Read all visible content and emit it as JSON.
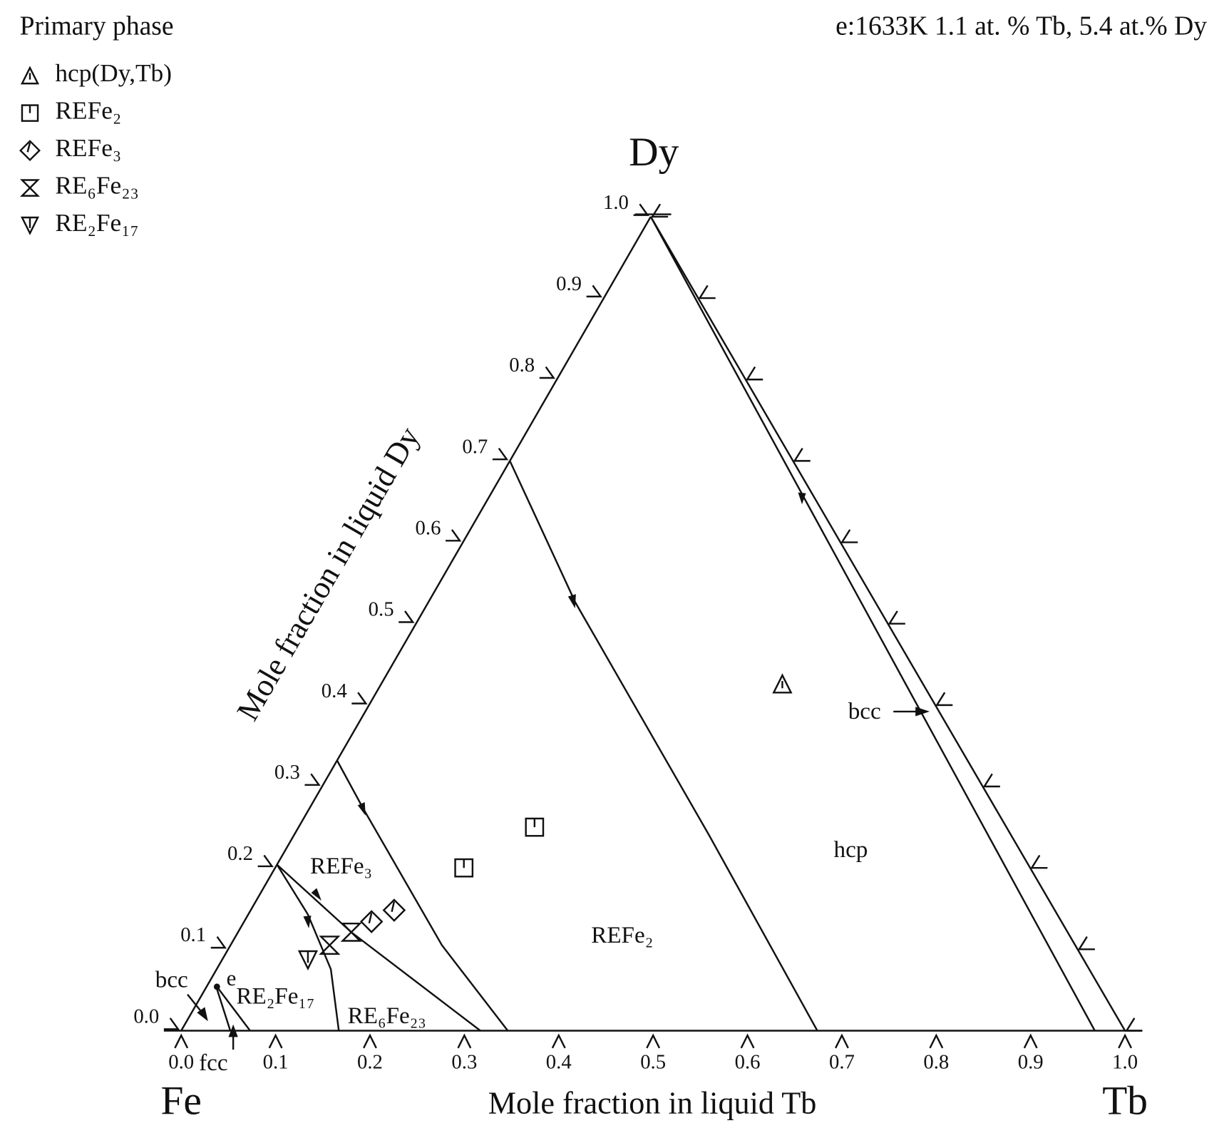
{
  "chart_data": {
    "type": "ternary",
    "legend_title": "Primary phase",
    "annotation": "e:1633K 1.1 at. % Tb, 5.4 at.% Dy",
    "vertices": [
      "Fe",
      "Tb",
      "Dy"
    ],
    "xlabel": "Mole fraction in liquid Tb",
    "ylabel": "Mole fraction in liquid Dy",
    "xlim": [
      0,
      1
    ],
    "ylim": [
      0,
      1
    ],
    "xticks": [
      {
        "value": 0,
        "label": "0.0"
      },
      0.1,
      0.2,
      0.3,
      0.4,
      0.5,
      0.6,
      0.7,
      0.8,
      0.9,
      {
        "value": 1,
        "label": "1.0"
      }
    ],
    "yticks": [
      {
        "value": 0,
        "label": "0.0"
      },
      0.1,
      0.2,
      0.3,
      0.4,
      0.5,
      0.6,
      0.7,
      0.8,
      0.9,
      {
        "value": 1,
        "label": "1.0"
      }
    ],
    "series": [
      {
        "name": "hcp(Dy,Tb)",
        "symbol": "triangle",
        "x": [
          0.425
        ],
        "y": [
          0.426
        ]
      },
      {
        "name": "REFe₂",
        "symbol": "square",
        "x": [
          0.25,
          0.2
        ],
        "y": [
          0.25,
          0.2
        ]
      },
      {
        "name": "REFe₃",
        "symbol": "diamond",
        "x": [
          0.135,
          0.152
        ],
        "y": [
          0.134,
          0.148
        ]
      },
      {
        "name": "RE₆Fe₂₃",
        "symbol": "hourglass",
        "x": [
          0.12,
          0.105
        ],
        "y": [
          0.121,
          0.105
        ]
      },
      {
        "name": "RE₂Fe₁₇",
        "symbol": "down-triangle",
        "x": [
          0.091
        ],
        "y": [
          0.087
        ]
      }
    ],
    "boundaries": [
      {
        "x": [
          0,
          0.156,
          0.44,
          0.674
        ],
        "y": [
          0.7,
          0.526,
          0.24,
          0
        ]
      },
      {
        "x": [
          0,
          0.056,
          0.224,
          0.346
        ],
        "y": [
          0.332,
          0.274,
          0.105,
          0
        ]
      },
      {
        "x": [
          0,
          0.12,
          0.317
        ],
        "y": [
          0.204,
          0.121,
          0
        ]
      },
      {
        "x": [
          0,
          0.063,
          0.121,
          0.167
        ],
        "y": [
          0.204,
          0.143,
          0.0755,
          0
        ]
      },
      {
        "x": [
          0,
          0.968
        ],
        "y": [
          1,
          0
        ]
      },
      {
        "x": [
          0.0087,
          0.073
        ],
        "y": [
          0.056,
          0
        ]
      },
      {
        "x": [
          0.0087,
          0.052
        ],
        "y": [
          0.056,
          0
        ]
      }
    ],
    "point": {
      "label": "e",
      "x": 0.011,
      "y": 0.054
    },
    "regions": [
      {
        "label": "REFe₃",
        "x": 0.07,
        "y": 0.2
      },
      {
        "label": "RE₂Fe₁₇",
        "x": 0.08,
        "y": 0.04
      },
      {
        "label": "RE₆Fe₂₃",
        "x": 0.21,
        "y": 0.016
      },
      {
        "label": "REFe₂",
        "x": 0.41,
        "y": 0.115
      },
      {
        "label": "hcp",
        "x": 0.6,
        "y": 0.22
      },
      {
        "label": "bcc",
        "x": 0.53,
        "y": 0.39
      },
      {
        "label": "bcc",
        "x": -0.04,
        "y": 0.06
      },
      {
        "label": "fcc",
        "x": 0.055,
        "y": -0.042
      }
    ]
  }
}
